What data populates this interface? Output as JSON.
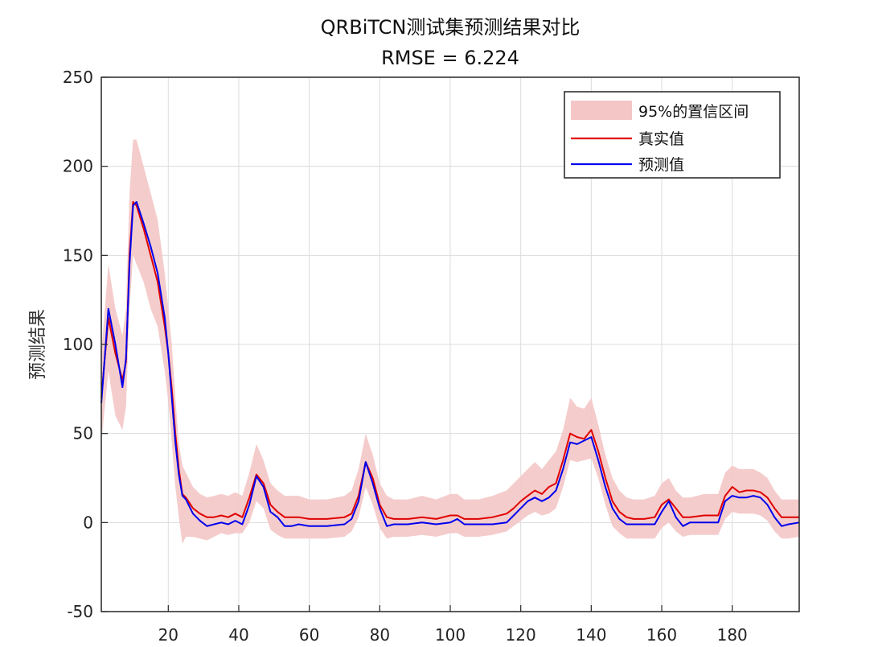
{
  "chart_data": {
    "type": "line",
    "title": "QRBiTCN测试集预测结果对比",
    "subtitle": "RMSE = 6.224",
    "xlabel": "",
    "ylabel": "预测结果",
    "xlim": [
      1,
      199
    ],
    "ylim": [
      -50,
      250
    ],
    "xticks": [
      20,
      40,
      60,
      80,
      100,
      120,
      140,
      160,
      180
    ],
    "yticks": [
      -50,
      0,
      50,
      100,
      150,
      200,
      250
    ],
    "grid": true,
    "legend_position": "top-right",
    "legend": [
      "95%的置信区间",
      "真实值",
      "预测值"
    ],
    "x_points": [
      1,
      3,
      5,
      7,
      8,
      9,
      10,
      11,
      13,
      15,
      17,
      19,
      20,
      21,
      22,
      23,
      24,
      25,
      27,
      29,
      31,
      33,
      35,
      37,
      39,
      41,
      43,
      45,
      47,
      49,
      51,
      53,
      55,
      57,
      60,
      65,
      70,
      72,
      74,
      76,
      78,
      80,
      82,
      84,
      88,
      92,
      96,
      100,
      102,
      104,
      108,
      112,
      116,
      118,
      120,
      122,
      124,
      126,
      128,
      130,
      132,
      134,
      136,
      138,
      140,
      142,
      144,
      146,
      148,
      150,
      152,
      155,
      158,
      160,
      162,
      164,
      166,
      168,
      172,
      176,
      178,
      180,
      182,
      184,
      186,
      188,
      190,
      192,
      194,
      196,
      199
    ],
    "series": [
      {
        "name": "真实值",
        "color": "#e00000",
        "values": [
          70,
          115,
          95,
          80,
          90,
          150,
          180,
          178,
          165,
          150,
          135,
          110,
          95,
          75,
          50,
          30,
          16,
          14,
          8,
          5,
          3,
          3,
          4,
          3,
          5,
          3,
          14,
          27,
          22,
          10,
          6,
          3,
          3,
          3,
          2,
          2,
          3,
          5,
          15,
          34,
          25,
          10,
          3,
          2,
          2,
          3,
          2,
          4,
          4,
          2,
          2,
          3,
          5,
          8,
          12,
          15,
          18,
          16,
          20,
          22,
          35,
          50,
          48,
          47,
          52,
          40,
          25,
          12,
          6,
          3,
          2,
          2,
          3,
          10,
          13,
          8,
          3,
          3,
          4,
          4,
          15,
          20,
          17,
          18,
          18,
          17,
          14,
          8,
          3,
          3,
          3
        ]
      },
      {
        "name": "预测值",
        "color": "#0000ee",
        "values": [
          67,
          120,
          100,
          76,
          92,
          145,
          178,
          180,
          168,
          155,
          140,
          115,
          95,
          70,
          45,
          27,
          15,
          13,
          5,
          1,
          -2,
          -1,
          0,
          -1,
          1,
          -1,
          10,
          26,
          20,
          6,
          3,
          -2,
          -2,
          -1,
          -2,
          -2,
          -1,
          2,
          12,
          34,
          22,
          8,
          -2,
          -1,
          -1,
          0,
          -1,
          0,
          2,
          -1,
          -1,
          -1,
          0,
          4,
          8,
          12,
          14,
          12,
          14,
          18,
          30,
          45,
          44,
          46,
          48,
          35,
          20,
          8,
          2,
          -1,
          -1,
          -1,
          -1,
          6,
          12,
          3,
          -2,
          0,
          0,
          0,
          12,
          15,
          14,
          14,
          15,
          14,
          10,
          3,
          -2,
          -1,
          0
        ]
      }
    ],
    "band": {
      "name": "95%的置信区间",
      "color": "#f4c6c6",
      "lower": [
        45,
        85,
        60,
        52,
        65,
        120,
        150,
        145,
        135,
        120,
        110,
        85,
        68,
        45,
        20,
        3,
        -12,
        -8,
        -8,
        -9,
        -10,
        -8,
        -6,
        -7,
        -6,
        -6,
        0,
        12,
        8,
        -4,
        -7,
        -9,
        -9,
        -9,
        -9,
        -9,
        -8,
        -5,
        3,
        20,
        10,
        -3,
        -9,
        -8,
        -8,
        -7,
        -8,
        -6,
        -6,
        -8,
        -8,
        -7,
        -5,
        -2,
        1,
        4,
        6,
        4,
        5,
        8,
        20,
        35,
        34,
        35,
        36,
        25,
        10,
        -2,
        -6,
        -9,
        -9,
        -9,
        -9,
        -3,
        0,
        -5,
        -8,
        -7,
        -7,
        -7,
        2,
        6,
        5,
        5,
        5,
        4,
        1,
        -5,
        -9,
        -9,
        -8
      ],
      "upper": [
        95,
        145,
        120,
        105,
        120,
        185,
        215,
        215,
        200,
        185,
        170,
        140,
        120,
        100,
        70,
        45,
        32,
        28,
        20,
        16,
        14,
        15,
        16,
        15,
        17,
        15,
        28,
        44,
        35,
        22,
        18,
        15,
        15,
        15,
        13,
        13,
        15,
        18,
        30,
        50,
        38,
        22,
        15,
        13,
        13,
        15,
        13,
        16,
        16,
        13,
        13,
        15,
        18,
        22,
        26,
        30,
        34,
        30,
        35,
        40,
        52,
        70,
        65,
        64,
        70,
        55,
        38,
        25,
        18,
        14,
        13,
        13,
        15,
        22,
        25,
        18,
        14,
        14,
        16,
        16,
        28,
        32,
        30,
        30,
        30,
        28,
        25,
        18,
        13,
        13,
        13
      ]
    }
  }
}
